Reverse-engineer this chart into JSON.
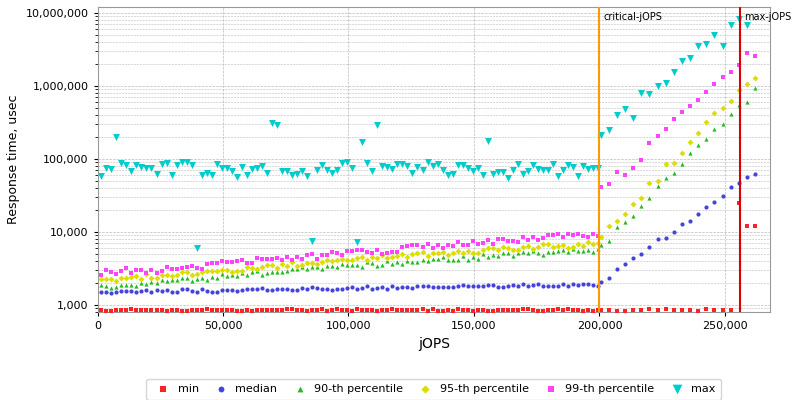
{
  "xlabel": "jOPS",
  "ylabel": "Response time, usec",
  "critical_jops": 200000,
  "max_jops": 256000,
  "critical_label": "critical-jOPS",
  "max_label": "max-jOPS",
  "xlim": [
    0,
    268000
  ],
  "ylim_log": [
    800,
    12000000
  ],
  "bg_color": "#ffffff",
  "grid_color": "#bbbbbb",
  "series": {
    "min": {
      "color": "#ff2222",
      "marker": "s",
      "ms": 3,
      "label": "min"
    },
    "median": {
      "color": "#4444dd",
      "marker": "o",
      "ms": 3,
      "label": "median"
    },
    "p90": {
      "color": "#22bb22",
      "marker": "^",
      "ms": 3,
      "label": "90-th percentile"
    },
    "p95": {
      "color": "#dddd00",
      "marker": "D",
      "ms": 3,
      "label": "95-th percentile"
    },
    "p99": {
      "color": "#ff44ff",
      "marker": "s",
      "ms": 3,
      "label": "99-th percentile"
    },
    "max": {
      "color": "#00cccc",
      "marker": "v",
      "ms": 5,
      "label": "max"
    }
  },
  "critical_line_color": "#ff9900",
  "max_line_color": "#dd0000"
}
